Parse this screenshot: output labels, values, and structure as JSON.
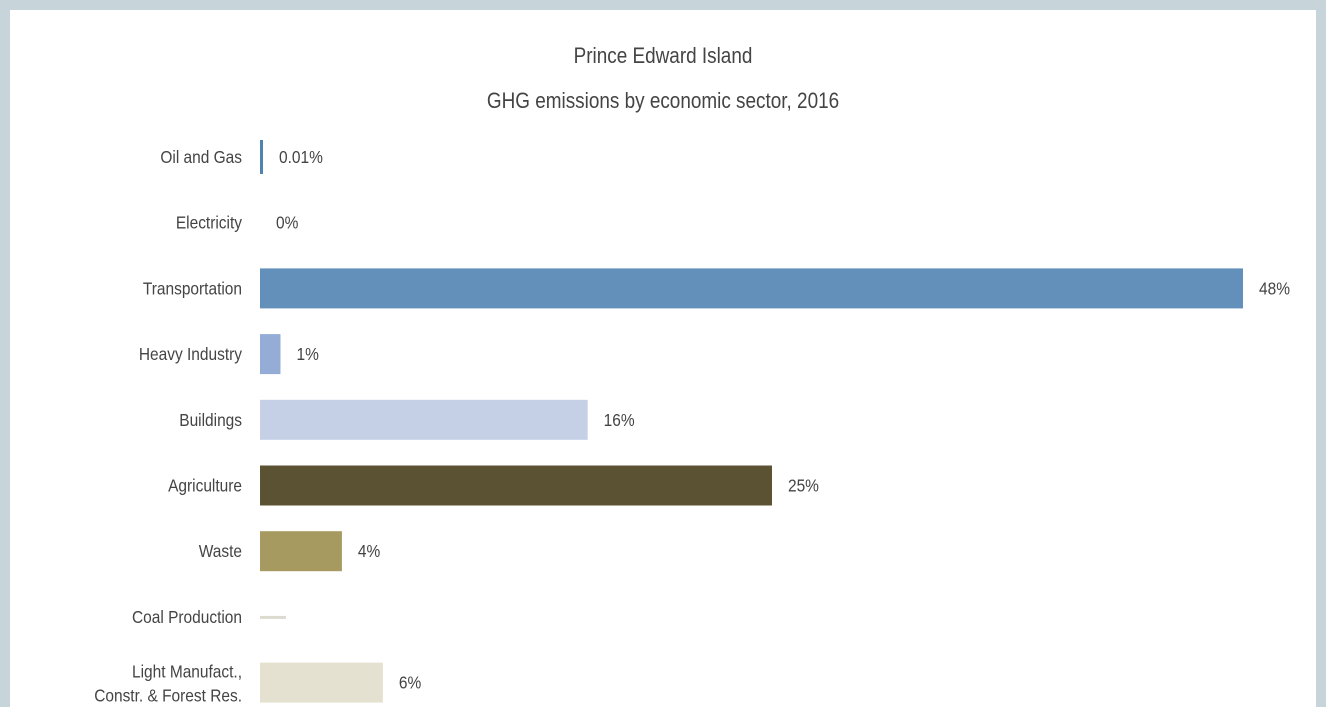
{
  "chart_data": {
    "type": "bar",
    "orientation": "horizontal",
    "title": "Prince Edward Island",
    "subtitle": "GHG emissions by economic sector, 2016",
    "xlabel": "",
    "ylabel": "",
    "xlim": [
      0,
      48
    ],
    "grid": false,
    "legend": "none",
    "categories": [
      "Oil and Gas",
      "Electricity",
      "Transportation",
      "Heavy Industry",
      "Buildings",
      "Agriculture",
      "Waste",
      "Coal Production",
      "Light Manufact., Constr. & Forest Res."
    ],
    "values": [
      0.01,
      0,
      48,
      1,
      16,
      25,
      4,
      0,
      6
    ],
    "data_labels": [
      "0.01%",
      "0%",
      "48%",
      "1%",
      "16%",
      "25%",
      "4%",
      "",
      "6%"
    ],
    "colors": [
      "#4f83b0",
      "#7fa3c8",
      "#6290bb",
      "#94acd6",
      "#c5d0e6",
      "#5b5233",
      "#a79a61",
      "#dcdbd0",
      "#e5e1d0"
    ]
  }
}
